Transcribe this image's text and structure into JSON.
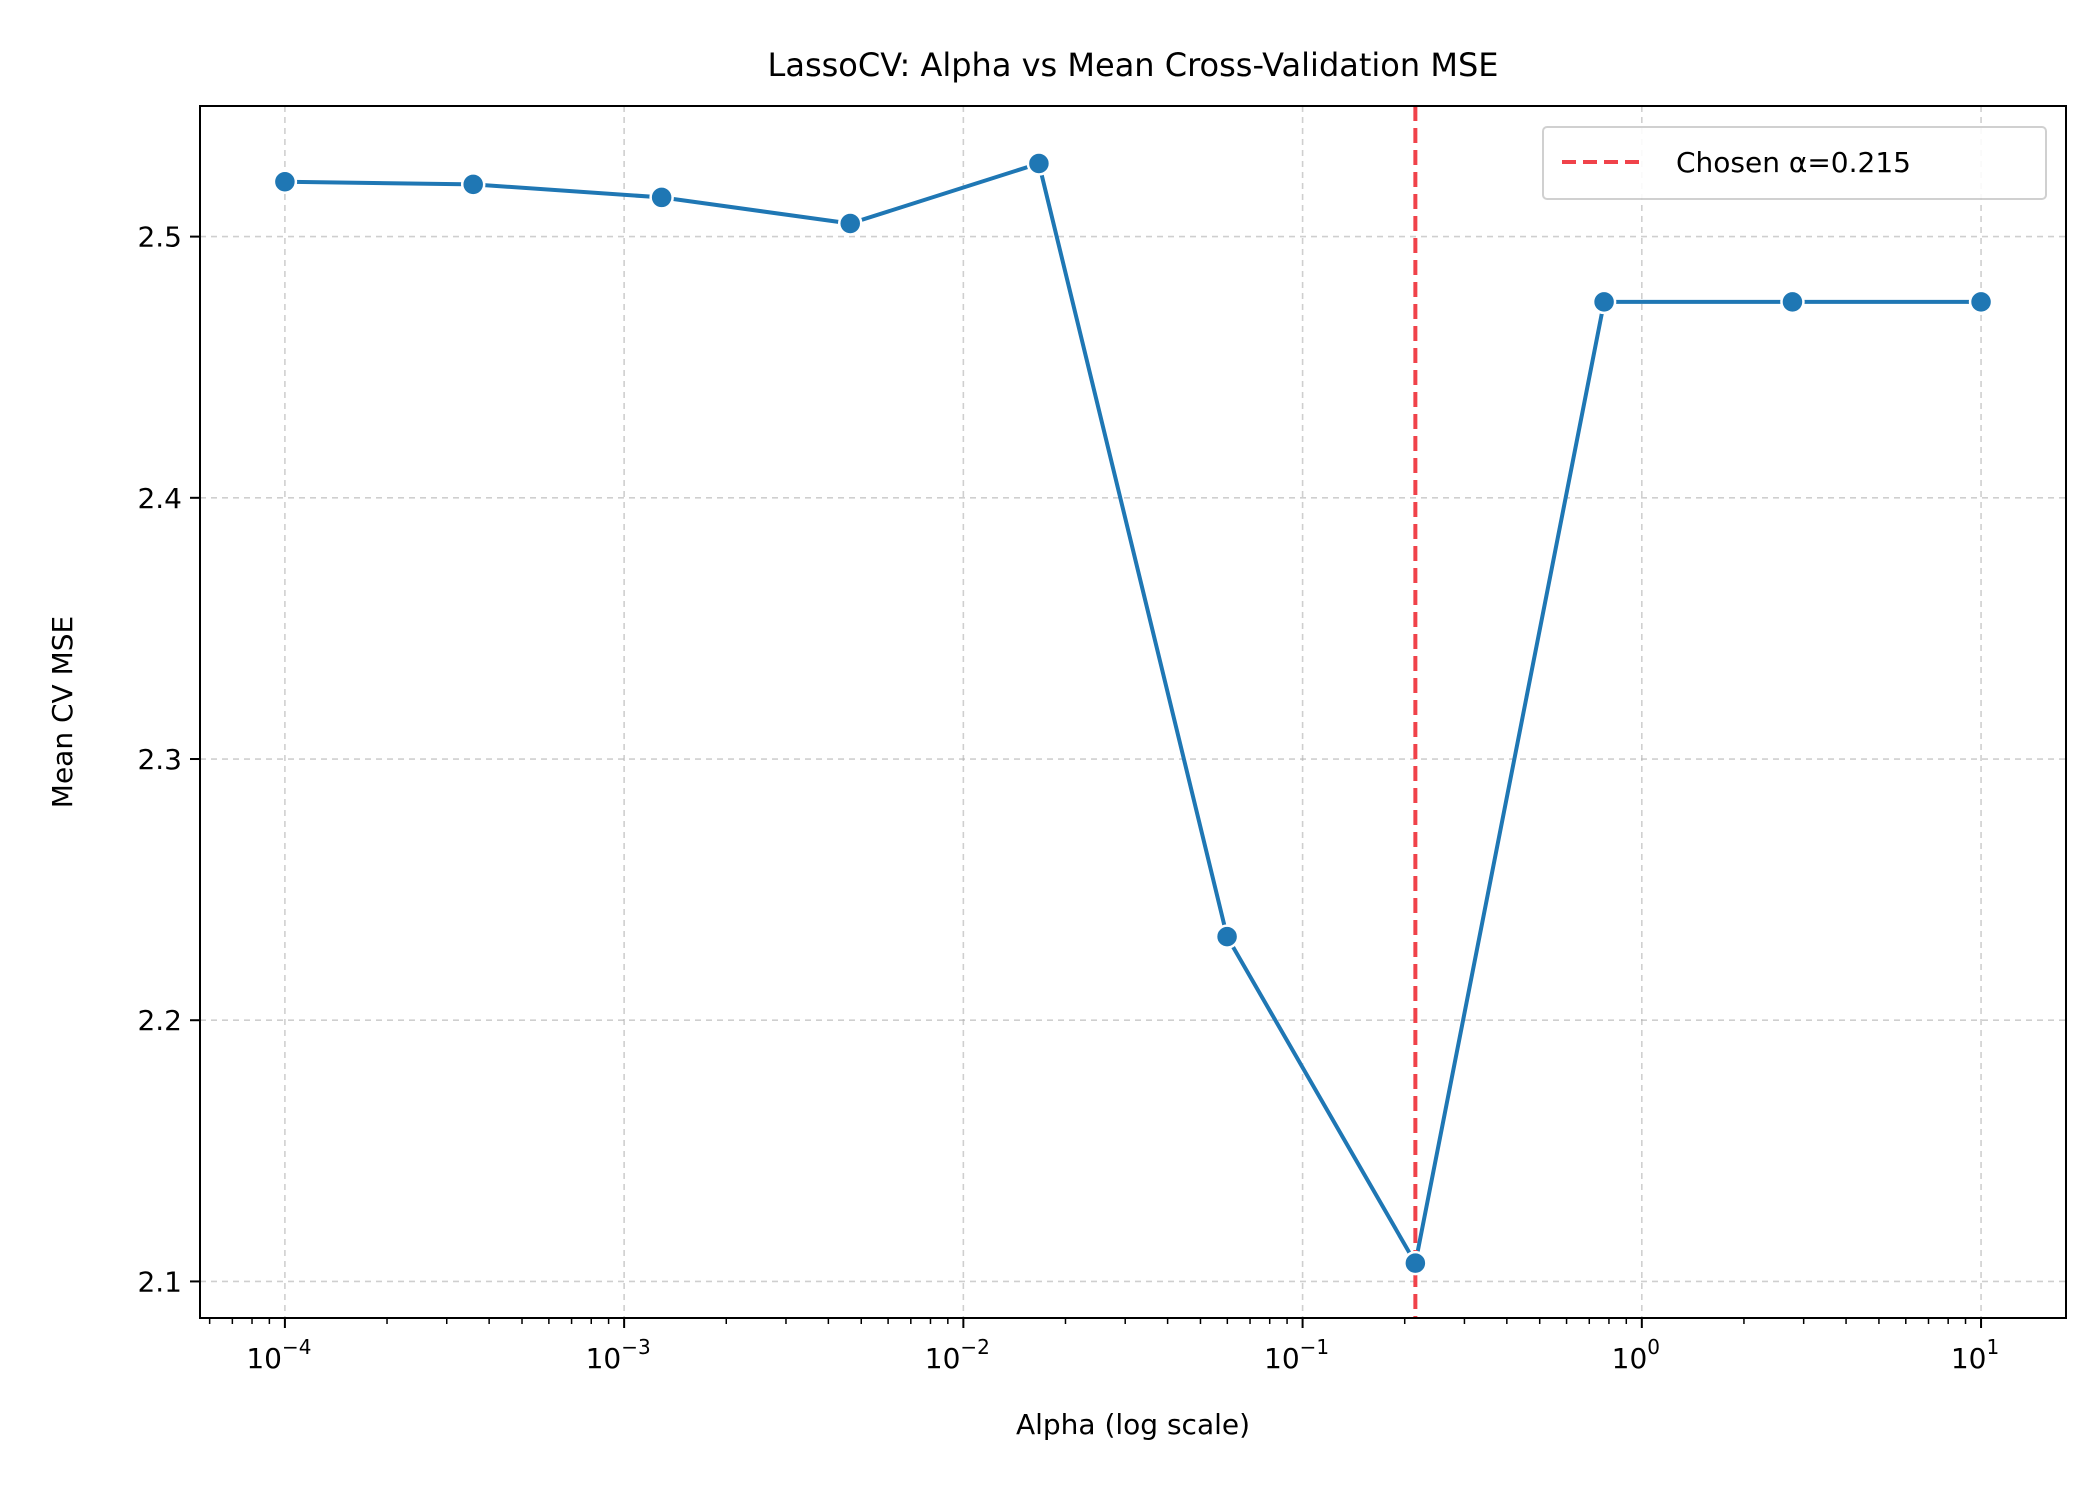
{
  "chart_data": {
    "type": "line",
    "title": "LassoCV: Alpha vs Mean Cross-Validation MSE",
    "xlabel": "Alpha (log scale)",
    "ylabel": "Mean CV MSE",
    "xscale": "log",
    "xlim": [
      5.62e-05,
      17.8
    ],
    "ylim": [
      2.086,
      2.55
    ],
    "grid": true,
    "legend_position": "top-right",
    "x_tick_labels": [
      {
        "value": 0.0001,
        "base": "10",
        "exp": "−4"
      },
      {
        "value": 0.001,
        "base": "10",
        "exp": "−3"
      },
      {
        "value": 0.01,
        "base": "10",
        "exp": "−2"
      },
      {
        "value": 0.1,
        "base": "10",
        "exp": "−1"
      },
      {
        "value": 1,
        "base": "10",
        "exp": "0"
      },
      {
        "value": 10,
        "base": "10",
        "exp": "1"
      }
    ],
    "y_ticks": [
      2.1,
      2.2,
      2.3,
      2.4,
      2.5
    ],
    "y_tick_labels": [
      "2.1",
      "2.2",
      "2.3",
      "2.4",
      "2.5"
    ],
    "series": [
      {
        "color": "#1f77b4",
        "marker": "circle",
        "x": [
          0.0001,
          0.000359,
          0.00129,
          0.00464,
          0.0167,
          0.0599,
          0.215,
          0.774,
          2.78,
          10
        ],
        "y": [
          2.521,
          2.52,
          2.515,
          2.505,
          2.528,
          2.232,
          2.107,
          2.475,
          2.475,
          2.475
        ]
      }
    ],
    "annotations": [
      {
        "type": "vline",
        "x": 0.215,
        "color": "#f0424a",
        "linestyle": "dashed",
        "legend_label": "Chosen α=0.215"
      }
    ]
  }
}
